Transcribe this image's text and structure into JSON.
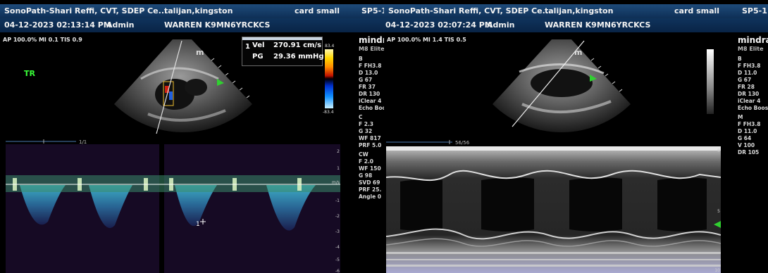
{
  "left": {
    "header": {
      "site": "SonoPath-Shari Reffi, CVT, SDEP Ce...",
      "patient": "talijan,kingston",
      "preset": "card small",
      "probe": "SP5-1",
      "datetime": "04-12-2023 02:13:14 PM",
      "operator": "Admin",
      "patient_id": "WARREN K9MN6YRCKCS"
    },
    "params": "AP 100.0%  MI 0.1  TIS 0.9",
    "view_label": "TR",
    "depth_marker": "m",
    "sidebar": {
      "brand": "mindray",
      "model": "M8 Elite",
      "b_title": "B",
      "b_lines": [
        "F FH3.8",
        "D 13.0",
        "G 67",
        "FR 37",
        "DR 130",
        "iClear 4",
        "Echo Boost"
      ],
      "c_title": "C",
      "c_lines": [
        "F 2.3",
        "G 32",
        "WF 817",
        "PRF 5.0"
      ],
      "cw_title": "CW",
      "cw_lines": [
        "F 2.0",
        "WF 150",
        "G 98",
        "SVD 69",
        "PRF 25.",
        "Angle 0"
      ]
    },
    "measurement": {
      "index": "1",
      "vel_label": "Vel",
      "vel_value": "270.91 cm/s",
      "pg_label": "PG",
      "pg_value": "29.36 mmHg"
    },
    "colorbar": {
      "top": "83.4",
      "bottom": "-83.4"
    },
    "doppler": {
      "timeline_label": "1/1",
      "unit": "m/s",
      "scale_ticks": [
        "2",
        "1",
        "-1",
        "-2",
        "-3",
        "-4",
        "-5",
        "-6"
      ],
      "cursor_label": "1"
    }
  },
  "right": {
    "header": {
      "site": "SonoPath-Shari Reffi, CVT, SDEP Ce...",
      "patient": "talijan,kingston",
      "preset": "card small",
      "probe": "SP5-1",
      "datetime": "04-12-2023 02:07:24 PM",
      "operator": "Admin",
      "patient_id": "WARREN K9MN6YRCKCS"
    },
    "params": "AP 100.0%  MI 1.4  TIS 0.5",
    "depth_marker": "m",
    "sidebar": {
      "brand": "mindray",
      "model": "M8 Elite",
      "b_title": "B",
      "b_lines": [
        "F FH3.8",
        "D 11.0",
        "G 67",
        "FR 28",
        "DR 130",
        "iClear 4",
        "Echo Boost"
      ],
      "m_title": "M",
      "m_lines": [
        "F FH3.8",
        "D 11.0",
        "G 64",
        "V 100",
        "DR 105"
      ]
    },
    "mmode": {
      "timeline_label": "56/56",
      "scale_ticks": [
        "0",
        "5",
        "10"
      ]
    }
  }
}
